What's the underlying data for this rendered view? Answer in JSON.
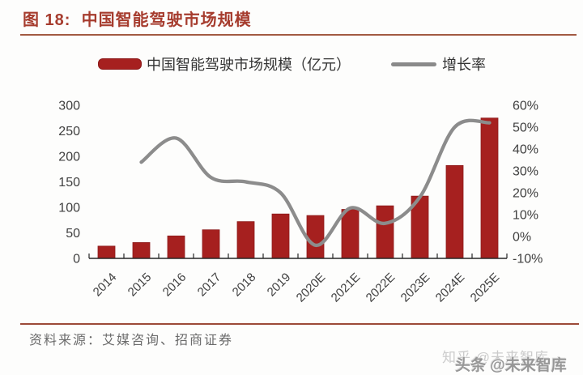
{
  "figure": {
    "title": "图 18:  中国智能驾驶市场规模"
  },
  "legend": {
    "bar_label": "中国智能驾驶市场规模（亿元）",
    "line_label": "增长率"
  },
  "chart_data": {
    "type": "bar",
    "subtype": "bar+line-combo",
    "title": "中国智能驾驶市场规模",
    "categories": [
      "2014",
      "2015",
      "2016",
      "2017",
      "2018",
      "2019",
      "2020E",
      "2021E",
      "2022E",
      "2023E",
      "2024E",
      "2025E"
    ],
    "series": [
      {
        "name": "中国智能驾驶市场规模（亿元）",
        "type": "bar",
        "axis": "left",
        "values": [
          24,
          31,
          44,
          56,
          72,
          87,
          84,
          96,
          103,
          122,
          182,
          275
        ]
      },
      {
        "name": "增长率",
        "type": "line",
        "axis": "right",
        "unit": "%",
        "values": [
          null,
          34,
          45,
          27,
          25,
          20,
          -4,
          13,
          6,
          18,
          50,
          52
        ]
      }
    ],
    "left_axis": {
      "min": 0,
      "max": 300,
      "tick_step": 50,
      "ticks": [
        0,
        50,
        100,
        150,
        200,
        250,
        300
      ]
    },
    "right_axis": {
      "min": -10,
      "max": 60,
      "tick_step": 10,
      "unit": "%",
      "ticks": [
        -10,
        0,
        10,
        20,
        30,
        40,
        50,
        60
      ]
    },
    "grid": false,
    "legend_position": "top",
    "line_smooth": true
  },
  "source": {
    "label": "资料来源：艾媒咨询、招商证券"
  },
  "watermarks": {
    "zhihu": "知乎 @未来智库",
    "toutiao": "头条 @未来智库"
  },
  "colors": {
    "bar": "#a6201f",
    "bar_border": "#8d1b1b",
    "line": "#8c8c8c",
    "title": "#a63c2e",
    "rule": "#a25a42",
    "axis_text": "#404040",
    "axis_line": "#262626"
  }
}
